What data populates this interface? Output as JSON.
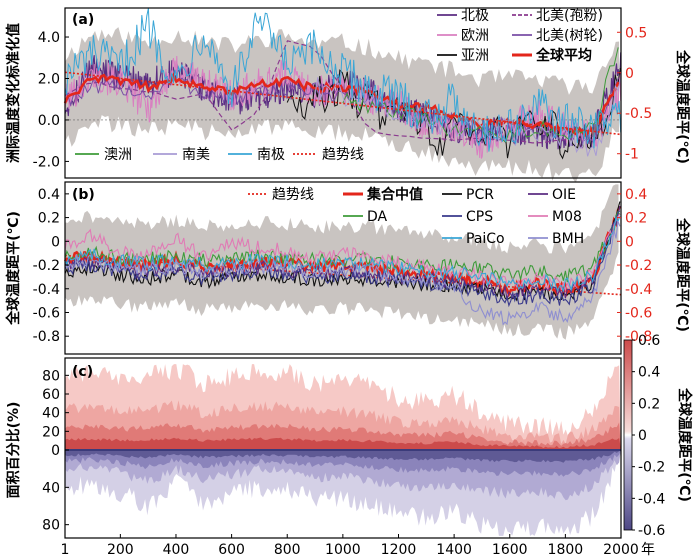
{
  "chart_data": [
    {
      "panel": "a",
      "type": "line",
      "panel_label": "(a)",
      "ylabel": "洲际温度变化标准化值",
      "y2label": "全球温度距平(℃)",
      "ylim": [
        -2.8,
        5.4
      ],
      "y2lim": [
        -1.3,
        0.8
      ],
      "yticks": [
        4.0,
        2.0,
        0.0,
        -2.0
      ],
      "y2ticks": [
        0.5,
        0,
        -0.5,
        -1.0
      ],
      "legend_top": [
        "北极",
        "欧洲",
        "亚洲",
        "北美(孢粉)",
        "北美(树轮)",
        "全球平均"
      ],
      "legend_bottom": [
        "澳洲",
        "南美",
        "南极",
        "趋势线"
      ],
      "series": [
        {
          "name": "北极",
          "color": "#5b2d82",
          "x": [
            1,
            100,
            200,
            300,
            400,
            500,
            600,
            700,
            800,
            900,
            1000,
            1100,
            1200,
            1300,
            1400,
            1500,
            1600,
            1700,
            1800,
            1900,
            2000
          ],
          "values": [
            0.6,
            2.6,
            2.0,
            1.8,
            2.3,
            1.5,
            0.9,
            1.1,
            1.6,
            1.2,
            1.8,
            1.4,
            0.5,
            0.2,
            -0.4,
            -0.6,
            -0.5,
            -0.6,
            -0.9,
            -0.7,
            3.0
          ]
        },
        {
          "name": "欧洲",
          "color": "#d97fc1",
          "x": [
            1,
            100,
            200,
            300,
            400,
            500,
            600,
            700,
            800,
            900,
            1000,
            1100,
            1200,
            1300,
            1400,
            1500,
            1600,
            1700,
            1800,
            1900,
            2000
          ],
          "values": [
            0.9,
            2.2,
            1.8,
            0.6,
            2.4,
            1.9,
            1.2,
            1.7,
            2.2,
            1.3,
            1.6,
            1.1,
            0.7,
            -0.2,
            -0.5,
            -1.1,
            -0.3,
            0.2,
            -0.4,
            -0.8,
            1.5
          ]
        },
        {
          "name": "亚洲",
          "color": "#111111",
          "x": [
            800,
            850,
            900,
            950,
            1000,
            1050,
            1100,
            1150,
            1200,
            1250,
            1300,
            1350,
            1400,
            1450,
            1500,
            1550,
            1600,
            1650,
            1700,
            1750,
            1800,
            1850,
            1900,
            1950,
            2000
          ],
          "values": [
            1.2,
            0.4,
            1.6,
            0.9,
            1.9,
            0.8,
            1.5,
            -0.3,
            0.9,
            0.2,
            -0.2,
            -1.4,
            0.6,
            -0.3,
            -1.2,
            -0.2,
            -1.3,
            0.1,
            -0.9,
            -0.1,
            -1.4,
            -0.5,
            -1.1,
            0.2,
            2.6
          ]
        },
        {
          "name": "北美(孢粉)",
          "color": "#8b3a8f",
          "x": [
            1,
            100,
            200,
            300,
            400,
            500,
            600,
            700,
            800,
            900,
            1000,
            1100,
            1200,
            1300,
            1400,
            1500,
            1600,
            1700,
            1800,
            1900,
            2000
          ],
          "values": [
            1.2,
            1.9,
            1.5,
            1.4,
            1.0,
            1.3,
            -0.5,
            0.4,
            3.8,
            3.5,
            1.5,
            -0.6,
            -0.8,
            -0.9,
            -1.0,
            -0.9,
            -1.0,
            -1.1,
            -0.9,
            -1.0,
            1.0
          ]
        },
        {
          "name": "北美(树轮)",
          "color": "#7a4ea6",
          "x": [
            1,
            100,
            200,
            300,
            400,
            500,
            600,
            700,
            800,
            900,
            1000,
            1100,
            1200,
            1300,
            1400,
            1500,
            1600,
            1700,
            1800,
            1900,
            2000
          ],
          "values": [
            1.0,
            1.5,
            1.6,
            1.2,
            1.9,
            1.3,
            1.0,
            1.2,
            1.6,
            1.4,
            1.2,
            0.9,
            0.6,
            0.3,
            -0.1,
            -0.5,
            -0.2,
            -0.4,
            -0.7,
            -0.9,
            2.2
          ]
        },
        {
          "name": "全球平均",
          "color": "#e3261b",
          "x": [
            1,
            100,
            200,
            300,
            400,
            500,
            600,
            700,
            800,
            900,
            1000,
            1100,
            1200,
            1300,
            1400,
            1500,
            1600,
            1700,
            1800,
            1900,
            2000
          ],
          "values": [
            0.9,
            2.0,
            1.9,
            1.6,
            2.0,
            1.6,
            1.4,
            1.7,
            1.9,
            1.5,
            1.6,
            1.3,
            0.8,
            0.6,
            0.2,
            -0.2,
            -0.1,
            -0.2,
            -0.5,
            -0.6,
            2.2
          ]
        },
        {
          "name": "澳洲",
          "color": "#3e9b3a",
          "x": [
            1000,
            1100,
            1200,
            1300,
            1400,
            1500,
            1600,
            1700,
            1800,
            1900,
            2000
          ],
          "values": [
            1.0,
            0.7,
            0.3,
            0.1,
            -0.6,
            -0.4,
            -0.8,
            -0.3,
            -0.6,
            -0.4,
            4.1
          ]
        },
        {
          "name": "南美",
          "color": "#a89bd4",
          "x": [
            900,
            1000,
            1100,
            1200,
            1300,
            1400,
            1500,
            1600,
            1700,
            1800,
            1900,
            2000
          ],
          "values": [
            1.5,
            1.3,
            0.9,
            0.4,
            0.0,
            -0.4,
            -0.2,
            -0.6,
            -0.9,
            -0.7,
            -1.6,
            1.8
          ]
        },
        {
          "name": "南极",
          "color": "#3aa6d6",
          "x": [
            1,
            100,
            200,
            300,
            400,
            500,
            600,
            700,
            800,
            900,
            1000,
            1100,
            1200,
            1300,
            1400,
            1500,
            1600,
            1700,
            1800,
            1900,
            2000
          ],
          "values": [
            2.0,
            3.2,
            2.5,
            4.6,
            1.8,
            4.4,
            1.3,
            4.8,
            2.6,
            3.4,
            2.2,
            1.5,
            1.0,
            0.2,
            0.9,
            -0.6,
            -0.4,
            0.6,
            -0.2,
            -0.4,
            0.3
          ]
        },
        {
          "name": "趋势线",
          "color": "#e3261b",
          "x": [
            1,
            2000
          ],
          "values": [
            2.3,
            -0.7
          ]
        }
      ]
    },
    {
      "panel": "b",
      "type": "line",
      "panel_label": "(b)",
      "ylabel": "全球温度距平(℃)",
      "y2label": "全球温度距平(℃)",
      "ylim": [
        -0.95,
        0.5
      ],
      "yticks": [
        0.4,
        0.2,
        0,
        -0.2,
        -0.4,
        -0.6,
        -0.8
      ],
      "y2ticks": [
        0.4,
        0.2,
        0,
        -0.2,
        -0.4,
        -0.6,
        -0.8
      ],
      "legend": [
        "趋势线",
        "集合中值",
        "PCR",
        "OIE",
        "DA",
        "CPS",
        "M08",
        "PaiCo",
        "BMH"
      ],
      "series": [
        {
          "name": "趋势线",
          "color": "#e3261b",
          "x": [
            1,
            2000
          ],
          "values": [
            -0.12,
            -0.45
          ]
        },
        {
          "name": "集合中值",
          "color": "#e3261b",
          "x": [
            1,
            100,
            200,
            300,
            400,
            500,
            600,
            700,
            800,
            900,
            1000,
            1100,
            1200,
            1300,
            1400,
            1500,
            1600,
            1700,
            1800,
            1900,
            2000
          ],
          "values": [
            -0.15,
            -0.13,
            -0.18,
            -0.2,
            -0.16,
            -0.22,
            -0.2,
            -0.18,
            -0.19,
            -0.22,
            -0.2,
            -0.22,
            -0.25,
            -0.28,
            -0.3,
            -0.33,
            -0.4,
            -0.36,
            -0.42,
            -0.3,
            0.3
          ]
        },
        {
          "name": "PCR",
          "color": "#111111",
          "x": [
            1,
            100,
            200,
            300,
            400,
            500,
            600,
            700,
            800,
            900,
            1000,
            1100,
            1200,
            1300,
            1400,
            1500,
            1600,
            1700,
            1800,
            1900,
            2000
          ],
          "values": [
            -0.25,
            -0.22,
            -0.28,
            -0.32,
            -0.27,
            -0.34,
            -0.3,
            -0.28,
            -0.3,
            -0.33,
            -0.3,
            -0.32,
            -0.34,
            -0.36,
            -0.38,
            -0.4,
            -0.46,
            -0.42,
            -0.46,
            -0.35,
            0.35
          ]
        },
        {
          "name": "OIE",
          "color": "#5b2d82",
          "x": [
            1,
            100,
            200,
            300,
            400,
            500,
            600,
            700,
            800,
            900,
            1000,
            1100,
            1200,
            1300,
            1400,
            1500,
            1600,
            1700,
            1800,
            1900,
            2000
          ],
          "values": [
            -0.2,
            -0.18,
            -0.24,
            -0.26,
            -0.2,
            -0.28,
            -0.25,
            -0.22,
            -0.24,
            -0.27,
            -0.25,
            -0.27,
            -0.3,
            -0.32,
            -0.34,
            -0.37,
            -0.44,
            -0.4,
            -0.45,
            -0.33,
            0.32
          ]
        },
        {
          "name": "DA",
          "color": "#3e9b3a",
          "x": [
            1,
            100,
            200,
            300,
            400,
            500,
            600,
            700,
            800,
            900,
            1000,
            1100,
            1200,
            1300,
            1400,
            1500,
            1600,
            1700,
            1800,
            1900,
            2000
          ],
          "values": [
            -0.12,
            -0.1,
            -0.14,
            -0.15,
            -0.12,
            -0.16,
            -0.15,
            -0.13,
            -0.14,
            -0.16,
            -0.15,
            -0.16,
            -0.18,
            -0.2,
            -0.21,
            -0.23,
            -0.28,
            -0.25,
            -0.3,
            -0.22,
            0.25
          ]
        },
        {
          "name": "CPS",
          "color": "#3a3a8c",
          "x": [
            1,
            100,
            200,
            300,
            400,
            500,
            600,
            700,
            800,
            900,
            1000,
            1100,
            1200,
            1300,
            1400,
            1500,
            1600,
            1700,
            1800,
            1900,
            2000
          ],
          "values": [
            -0.22,
            -0.2,
            -0.26,
            -0.3,
            -0.24,
            -0.32,
            -0.28,
            -0.25,
            -0.27,
            -0.31,
            -0.28,
            -0.3,
            -0.33,
            -0.35,
            -0.37,
            -0.42,
            -0.5,
            -0.45,
            -0.5,
            -0.38,
            0.3
          ]
        },
        {
          "name": "M08",
          "color": "#e07bb5",
          "x": [
            1,
            100,
            200,
            300,
            400,
            500,
            600,
            700,
            800,
            900,
            1000,
            1100,
            1200,
            1300,
            1400,
            1500,
            1600,
            1700,
            1800,
            1900,
            2000
          ],
          "values": [
            -0.05,
            0.05,
            -0.1,
            -0.12,
            0.02,
            -0.14,
            -0.02,
            -0.05,
            -0.08,
            -0.15,
            -0.1,
            -0.14,
            -0.18,
            -0.22,
            -0.26,
            -0.3,
            -0.36,
            -0.32,
            -0.38,
            -0.28,
            0.28
          ]
        },
        {
          "name": "PaiCo",
          "color": "#3aa6d6",
          "x": [
            1,
            100,
            200,
            300,
            400,
            500,
            600,
            700,
            800,
            900,
            1000,
            1100,
            1200,
            1300,
            1400,
            1500,
            1600,
            1700,
            1800,
            1900,
            2000
          ],
          "values": [
            -0.14,
            -0.12,
            -0.17,
            -0.19,
            -0.15,
            -0.2,
            -0.18,
            -0.16,
            -0.17,
            -0.2,
            -0.18,
            -0.2,
            -0.22,
            -0.25,
            -0.27,
            -0.3,
            -0.36,
            -0.33,
            -0.37,
            -0.28,
            0.27
          ]
        },
        {
          "name": "BMH",
          "color": "#8f8fd0",
          "x": [
            1,
            100,
            200,
            300,
            400,
            500,
            600,
            700,
            800,
            900,
            1000,
            1100,
            1200,
            1300,
            1400,
            1500,
            1600,
            1700,
            1800,
            1900,
            2000
          ],
          "values": [
            -0.18,
            -0.16,
            -0.22,
            -0.24,
            -0.2,
            -0.26,
            -0.23,
            -0.21,
            -0.22,
            -0.26,
            -0.24,
            -0.26,
            -0.3,
            -0.33,
            -0.38,
            -0.6,
            -0.66,
            -0.55,
            -0.66,
            -0.45,
            0.2
          ]
        }
      ]
    },
    {
      "panel": "c",
      "type": "area",
      "panel_label": "(c)",
      "ylabel": "面积百分比(%)",
      "colorbar_label": "全球温度距平(℃)",
      "yticks_top": [
        80,
        60,
        40,
        20,
        0
      ],
      "yticks_bottom": [
        40,
        80
      ],
      "colorbar_ticks": [
        0.6,
        0.4,
        0.2,
        0,
        -0.2,
        -0.4,
        -0.6
      ],
      "xlabel": "年",
      "xticks": [
        1,
        200,
        400,
        600,
        800,
        1000,
        1200,
        1400,
        1600,
        1800,
        2000
      ],
      "warm_x": [
        1,
        100,
        200,
        300,
        400,
        500,
        600,
        700,
        800,
        900,
        1000,
        1100,
        1200,
        1300,
        1400,
        1500,
        1600,
        1700,
        1800,
        1900,
        2000
      ],
      "warm_values": [
        80,
        82,
        75,
        78,
        88,
        72,
        80,
        85,
        84,
        72,
        75,
        68,
        55,
        52,
        60,
        40,
        28,
        25,
        22,
        40,
        95
      ],
      "cool_x": [
        1,
        100,
        200,
        300,
        400,
        500,
        600,
        700,
        800,
        900,
        1000,
        1100,
        1200,
        1300,
        1400,
        1500,
        1600,
        1700,
        1800,
        1900,
        2000
      ],
      "cool_values": [
        40,
        35,
        45,
        60,
        35,
        55,
        48,
        40,
        42,
        55,
        50,
        60,
        70,
        72,
        65,
        80,
        85,
        82,
        88,
        70,
        10
      ]
    }
  ]
}
